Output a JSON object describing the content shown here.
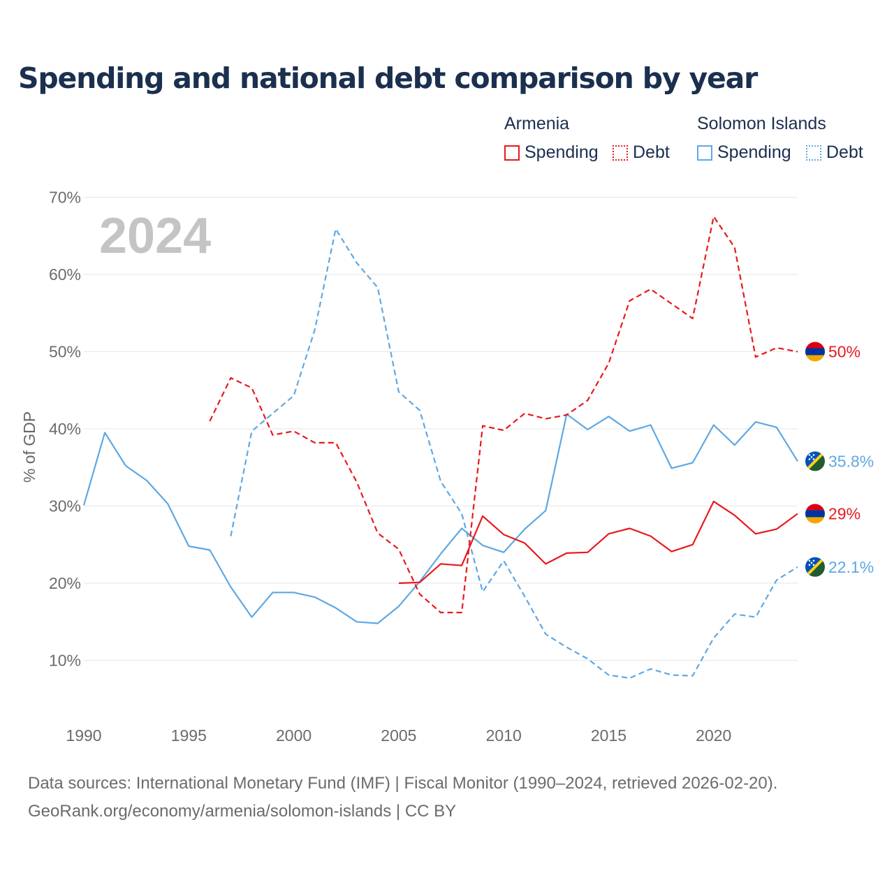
{
  "title": "Spending and national debt comparison by year",
  "legend": {
    "groups": [
      {
        "country": "Armenia",
        "color": "#e8191e",
        "items": [
          "Spending",
          "Debt"
        ]
      },
      {
        "country": "Solomon Islands",
        "color": "#5ea8e3",
        "items": [
          "Spending",
          "Debt"
        ]
      }
    ]
  },
  "sources": {
    "line1": "Data sources: International Monetary Fund (IMF) | Fiscal Monitor (1990–2024, retrieved 2026-02-20).",
    "line2": "GeoRank.org/economy/armenia/solomon-islands | CC BY"
  },
  "chart_data": {
    "type": "line",
    "year_watermark": "2024",
    "ylabel": "% of GDP",
    "xlim": [
      1990,
      2024
    ],
    "ylim": [
      0,
      70
    ],
    "x_ticks": [
      "1990",
      "1995",
      "2000",
      "2005",
      "2010",
      "2015",
      "2020"
    ],
    "y_ticks": [
      {
        "value": 10,
        "label": "10%"
      },
      {
        "value": 20,
        "label": "20%"
      },
      {
        "value": 30,
        "label": "30%"
      },
      {
        "value": 40,
        "label": "40%"
      },
      {
        "value": 50,
        "label": "50%"
      },
      {
        "value": 60,
        "label": "60%"
      },
      {
        "value": 70,
        "label": "70%"
      }
    ],
    "series": [
      {
        "name": "Solomon Islands Spending",
        "country": "Solomon Islands",
        "color": "#5ea8e3",
        "dashed": false,
        "flag": "solomon",
        "end_label": "35.8%",
        "points": [
          [
            1990,
            30.1
          ],
          [
            1991,
            39.5
          ],
          [
            1992,
            35.2
          ],
          [
            1993,
            33.3
          ],
          [
            1994,
            30.3
          ],
          [
            1995,
            24.8
          ],
          [
            1996,
            24.3
          ],
          [
            1997,
            19.5
          ],
          [
            1998,
            15.6
          ],
          [
            1999,
            18.8
          ],
          [
            2000,
            18.8
          ],
          [
            2001,
            18.2
          ],
          [
            2002,
            16.8
          ],
          [
            2003,
            15.0
          ],
          [
            2004,
            14.8
          ],
          [
            2005,
            17.0
          ],
          [
            2006,
            20.2
          ],
          [
            2007,
            23.8
          ],
          [
            2008,
            27.1
          ],
          [
            2009,
            24.9
          ],
          [
            2010,
            24.0
          ],
          [
            2011,
            27.0
          ],
          [
            2012,
            29.4
          ],
          [
            2013,
            41.9
          ],
          [
            2014,
            39.9
          ],
          [
            2015,
            41.6
          ],
          [
            2016,
            39.7
          ],
          [
            2017,
            40.5
          ],
          [
            2018,
            34.9
          ],
          [
            2019,
            35.6
          ],
          [
            2020,
            40.5
          ],
          [
            2021,
            37.9
          ],
          [
            2022,
            40.9
          ],
          [
            2023,
            40.2
          ],
          [
            2024,
            35.8
          ]
        ]
      },
      {
        "name": "Solomon Islands Debt",
        "country": "Solomon Islands",
        "color": "#5ea8e3",
        "dashed": true,
        "flag": "solomon",
        "end_label": "22.1%",
        "points": [
          [
            1997,
            26.1
          ],
          [
            1998,
            39.7
          ],
          [
            1999,
            42.0
          ],
          [
            2000,
            44.3
          ],
          [
            2001,
            52.8
          ],
          [
            2002,
            65.9
          ],
          [
            2003,
            61.5
          ],
          [
            2004,
            58.3
          ],
          [
            2005,
            44.8
          ],
          [
            2006,
            42.4
          ],
          [
            2007,
            33.2
          ],
          [
            2008,
            29.0
          ],
          [
            2009,
            18.9
          ],
          [
            2010,
            22.9
          ],
          [
            2011,
            18.3
          ],
          [
            2012,
            13.4
          ],
          [
            2013,
            11.7
          ],
          [
            2014,
            10.2
          ],
          [
            2015,
            8.1
          ],
          [
            2016,
            7.7
          ],
          [
            2017,
            8.9
          ],
          [
            2018,
            8.1
          ],
          [
            2019,
            8.0
          ],
          [
            2020,
            12.9
          ],
          [
            2021,
            16.0
          ],
          [
            2022,
            15.6
          ],
          [
            2023,
            20.4
          ],
          [
            2024,
            22.1
          ]
        ]
      },
      {
        "name": "Armenia Debt",
        "country": "Armenia",
        "color": "#e8191e",
        "dashed": true,
        "flag": "armenia",
        "end_label": "50%",
        "points": [
          [
            1996,
            41.0
          ],
          [
            1997,
            46.6
          ],
          [
            1998,
            45.3
          ],
          [
            1999,
            39.2
          ],
          [
            2000,
            39.7
          ],
          [
            2001,
            38.2
          ],
          [
            2002,
            38.2
          ],
          [
            2003,
            33.1
          ],
          [
            2004,
            26.5
          ],
          [
            2005,
            24.4
          ],
          [
            2006,
            18.6
          ],
          [
            2007,
            16.2
          ],
          [
            2008,
            16.2
          ],
          [
            2009,
            40.4
          ],
          [
            2010,
            39.8
          ],
          [
            2011,
            42.0
          ],
          [
            2012,
            41.3
          ],
          [
            2013,
            41.8
          ],
          [
            2014,
            43.7
          ],
          [
            2015,
            48.5
          ],
          [
            2016,
            56.6
          ],
          [
            2017,
            58.1
          ],
          [
            2018,
            56.2
          ],
          [
            2019,
            54.3
          ],
          [
            2020,
            67.5
          ],
          [
            2021,
            63.5
          ],
          [
            2022,
            49.3
          ],
          [
            2023,
            50.5
          ],
          [
            2024,
            50.0
          ]
        ]
      },
      {
        "name": "Armenia Spending",
        "country": "Armenia",
        "color": "#e8191e",
        "dashed": false,
        "flag": "armenia",
        "end_label": "29%",
        "points": [
          [
            2005,
            20.0
          ],
          [
            2006,
            20.1
          ],
          [
            2007,
            22.5
          ],
          [
            2008,
            22.3
          ],
          [
            2009,
            28.7
          ],
          [
            2010,
            26.3
          ],
          [
            2011,
            25.2
          ],
          [
            2012,
            22.5
          ],
          [
            2013,
            23.9
          ],
          [
            2014,
            24.0
          ],
          [
            2015,
            26.4
          ],
          [
            2016,
            27.1
          ],
          [
            2017,
            26.1
          ],
          [
            2018,
            24.1
          ],
          [
            2019,
            25.0
          ],
          [
            2020,
            30.6
          ],
          [
            2021,
            28.8
          ],
          [
            2022,
            26.4
          ],
          [
            2023,
            27.0
          ],
          [
            2024,
            29.0
          ]
        ]
      }
    ]
  }
}
